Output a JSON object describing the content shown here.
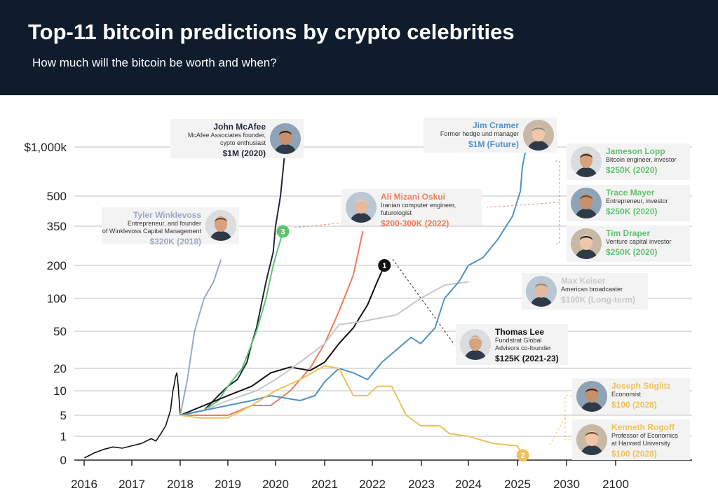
{
  "header": {
    "title": "Top-11 bitcoin predictions by crypto celebrities",
    "subtitle": "How much will the bitcoin be worth and when?"
  },
  "colors": {
    "header_bg": "#0f1c2c",
    "history": "#111111",
    "mcafee": "#1f2738",
    "winklevoss": "#9aa9c6",
    "blue": "#4f93c8",
    "green": "#5ec36e",
    "orange": "#ee7c58",
    "lee": "#111111",
    "keiser": "#c8c8c8",
    "yellow": "#eec25a"
  },
  "chart_data": {
    "type": "line",
    "y_scale": "custom non-linear",
    "y_ticks": [
      {
        "value": 0,
        "label": "0"
      },
      {
        "value": 1,
        "label": "1"
      },
      {
        "value": 5,
        "label": "5"
      },
      {
        "value": 10,
        "label": "10"
      },
      {
        "value": 20,
        "label": "20"
      },
      {
        "value": 50,
        "label": "50"
      },
      {
        "value": 100,
        "label": "100"
      },
      {
        "value": 200,
        "label": "200"
      },
      {
        "value": 350,
        "label": "350"
      },
      {
        "value": 500,
        "label": "500"
      },
      {
        "value": 1000,
        "label": "$1,000k"
      }
    ],
    "x_ticks": [
      "2016",
      "2017",
      "2018",
      "2019",
      "2020",
      "2021",
      "2022",
      "2023",
      "2024",
      "2025",
      "2030",
      "2100"
    ],
    "grid": "horizontal",
    "series": [
      {
        "key": "history",
        "color": "#111111",
        "width": 1.6,
        "points": [
          [
            2016.0,
            0.1
          ],
          [
            2016.2,
            0.3
          ],
          [
            2016.4,
            0.45
          ],
          [
            2016.6,
            0.55
          ],
          [
            2016.8,
            0.5
          ],
          [
            2017.0,
            0.6
          ],
          [
            2017.2,
            0.7
          ],
          [
            2017.4,
            0.9
          ],
          [
            2017.5,
            0.8
          ],
          [
            2017.6,
            1.5
          ],
          [
            2017.7,
            3.0
          ],
          [
            2017.8,
            6.0
          ],
          [
            2017.85,
            10.0
          ],
          [
            2017.88,
            13.0
          ],
          [
            2017.9,
            16.0
          ],
          [
            2017.93,
            18.0
          ],
          [
            2017.96,
            12.0
          ],
          [
            2018.0,
            5.0
          ]
        ]
      },
      {
        "key": "mcafee",
        "color": "#1f2738",
        "width": 2,
        "points": [
          [
            2018.0,
            5.0
          ],
          [
            2018.5,
            6.0
          ],
          [
            2018.8,
            9.0
          ],
          [
            2019.0,
            12.0
          ],
          [
            2019.2,
            15.0
          ],
          [
            2019.4,
            25.0
          ],
          [
            2019.5,
            40.0
          ],
          [
            2019.6,
            55.0
          ],
          [
            2019.8,
            150.0
          ],
          [
            2019.95,
            250.0
          ],
          [
            2020.0,
            350.0
          ],
          [
            2020.1,
            500.0
          ],
          [
            2020.2,
            1000.0
          ]
        ]
      },
      {
        "key": "winklevoss",
        "color": "#9aa9c6",
        "width": 2,
        "points": [
          [
            2018.0,
            5.0
          ],
          [
            2018.15,
            15.0
          ],
          [
            2018.3,
            50.0
          ],
          [
            2018.5,
            100.0
          ],
          [
            2018.7,
            150.0
          ],
          [
            2018.85,
            220.0
          ]
        ]
      },
      {
        "key": "green",
        "color": "#5ec36e",
        "width": 2,
        "points": [
          [
            2018.0,
            5.0
          ],
          [
            2018.5,
            6.0
          ],
          [
            2018.8,
            8.0
          ],
          [
            2019.0,
            12.0
          ],
          [
            2019.3,
            20.0
          ],
          [
            2019.6,
            50.0
          ],
          [
            2019.8,
            100.0
          ],
          [
            2019.95,
            200.0
          ],
          [
            2020.15,
            330.0
          ]
        ]
      },
      {
        "key": "orange",
        "color": "#ee7c58",
        "width": 2,
        "points": [
          [
            2018.0,
            5.0
          ],
          [
            2019.0,
            5.0
          ],
          [
            2019.5,
            7.0
          ],
          [
            2019.9,
            7.0
          ],
          [
            2020.3,
            10.0
          ],
          [
            2020.7,
            20.0
          ],
          [
            2021.0,
            40.0
          ],
          [
            2021.3,
            80.0
          ],
          [
            2021.6,
            170.0
          ],
          [
            2021.8,
            330.0
          ]
        ]
      },
      {
        "key": "lee",
        "color": "#111111",
        "width": 2,
        "points": [
          [
            2018.0,
            5.0
          ],
          [
            2018.5,
            7.0
          ],
          [
            2019.0,
            9.0
          ],
          [
            2019.5,
            12.0
          ],
          [
            2019.9,
            18.0
          ],
          [
            2020.3,
            21.0
          ],
          [
            2020.7,
            19.0
          ],
          [
            2021.0,
            25.0
          ],
          [
            2021.3,
            40.0
          ],
          [
            2021.6,
            55.0
          ],
          [
            2021.9,
            90.0
          ],
          [
            2022.1,
            150.0
          ],
          [
            2022.25,
            200.0
          ]
        ]
      },
      {
        "key": "keiser",
        "color": "#c8c8c8",
        "width": 2,
        "points": [
          [
            2018.0,
            5.0
          ],
          [
            2018.5,
            6.0
          ],
          [
            2019.0,
            8.0
          ],
          [
            2019.6,
            10.0
          ],
          [
            2020.0,
            15.0
          ],
          [
            2020.5,
            25.0
          ],
          [
            2021.0,
            40.0
          ],
          [
            2021.3,
            60.0
          ],
          [
            2021.8,
            65.0
          ],
          [
            2022.5,
            75.0
          ],
          [
            2023.0,
            100.0
          ],
          [
            2023.5,
            140.0
          ],
          [
            2024.0,
            150.0
          ]
        ]
      },
      {
        "key": "blue",
        "color": "#4f93c8",
        "width": 2,
        "points": [
          [
            2018.0,
            5.0
          ],
          [
            2018.5,
            6.0
          ],
          [
            2019.0,
            7.0
          ],
          [
            2019.5,
            8.0
          ],
          [
            2019.9,
            9.0
          ],
          [
            2020.5,
            8.0
          ],
          [
            2020.8,
            9.0
          ],
          [
            2021.0,
            14.0
          ],
          [
            2021.3,
            20.0
          ],
          [
            2021.6,
            18.0
          ],
          [
            2021.9,
            15.0
          ],
          [
            2022.2,
            25.0
          ],
          [
            2022.5,
            35.0
          ],
          [
            2022.8,
            45.0
          ],
          [
            2023.0,
            40.0
          ],
          [
            2023.3,
            55.0
          ],
          [
            2023.5,
            100.0
          ],
          [
            2023.8,
            150.0
          ],
          [
            2024.0,
            200.0
          ],
          [
            2024.3,
            230.0
          ],
          [
            2024.6,
            300.0
          ],
          [
            2024.9,
            400.0
          ],
          [
            2025.3,
            550.0
          ],
          [
            2025.5,
            800.0
          ],
          [
            2025.9,
            1000.0
          ]
        ]
      },
      {
        "key": "yellow",
        "color": "#eec25a",
        "width": 2,
        "points": [
          [
            2018.0,
            5.0
          ],
          [
            2018.4,
            4.5
          ],
          [
            2019.0,
            4.5
          ],
          [
            2019.5,
            7.0
          ],
          [
            2020.0,
            10.0
          ],
          [
            2020.5,
            15.0
          ],
          [
            2021.0,
            22.0
          ],
          [
            2021.3,
            20.0
          ],
          [
            2021.6,
            9.0
          ],
          [
            2021.9,
            9.0
          ],
          [
            2022.1,
            12.0
          ],
          [
            2022.4,
            12.0
          ],
          [
            2022.7,
            5.0
          ],
          [
            2023.0,
            3.0
          ],
          [
            2023.4,
            3.0
          ],
          [
            2023.6,
            1.5
          ],
          [
            2024.0,
            1.0
          ],
          [
            2024.5,
            0.7
          ],
          [
            2025.0,
            0.6
          ],
          [
            2025.5,
            0.2
          ]
        ]
      }
    ],
    "markers": [
      {
        "label": "1",
        "x": 2022.25,
        "y": 200,
        "color": "#111111"
      },
      {
        "label": "2",
        "x": 2025.55,
        "y": 0.2,
        "color": "#eec25a"
      },
      {
        "label": "3",
        "x": 2020.15,
        "y": 330,
        "color": "#5ec36e"
      }
    ],
    "annotations": [
      {
        "key": "winklevoss",
        "name": "Tyler Winklevoss",
        "role": [
          "Entrepreneur, and founder",
          "of Winklevoss Capital Management"
        ],
        "prediction": "$320K (2018)",
        "color": "#9aa9c6"
      },
      {
        "key": "mcafee",
        "name": "John McAfee",
        "role": [
          "McAfee Associates founder,",
          "cypto enthusiast"
        ],
        "prediction": "$1M (2020)",
        "color": "#1f2738"
      },
      {
        "key": "cramer",
        "name": "Jim Cramer",
        "role": [
          "Former hedge und manager"
        ],
        "prediction": "$1M (Future)",
        "color": "#4f93c8"
      },
      {
        "key": "oskui",
        "name": "Ali Mizani Oskui",
        "role": [
          "Iranian computer engineer,",
          "futurologist"
        ],
        "prediction": "$200-300K (2022)",
        "color": "#ee7c58"
      },
      {
        "key": "lopp",
        "name": "Jameson Lopp",
        "role": [
          "Bitcoin engineer, investor"
        ],
        "prediction": "$250K (2020)",
        "color": "#5ec36e"
      },
      {
        "key": "mayer",
        "name": "Trace Mayer",
        "role": [
          "Entrepreneur, investor"
        ],
        "prediction": "$250K (2020)",
        "color": "#5ec36e"
      },
      {
        "key": "draper",
        "name": "Tim Draper",
        "role": [
          "Venture capital investor"
        ],
        "prediction": "$250K (2020)",
        "color": "#5ec36e"
      },
      {
        "key": "keiser",
        "name": "Max Keiser",
        "role": [
          "American broadcaster"
        ],
        "prediction": "$100K (Long-term)",
        "color": "#c8c8c8"
      },
      {
        "key": "lee",
        "name": "Thomas Lee",
        "role": [
          "Fundstrat Global",
          "Advisors co-founder"
        ],
        "prediction": "$125K (2021-23)",
        "color": "#111111"
      },
      {
        "key": "stiglitz",
        "name": "Joseph Stiglitz",
        "role": [
          "Economist"
        ],
        "prediction": "$100 (2028)",
        "color": "#eec25a"
      },
      {
        "key": "rogoff",
        "name": "Kenneth Rogoff",
        "role": [
          "Professor of Economics",
          "at Harvard University"
        ],
        "prediction": "$100 (2028)",
        "color": "#eec25a"
      }
    ]
  }
}
